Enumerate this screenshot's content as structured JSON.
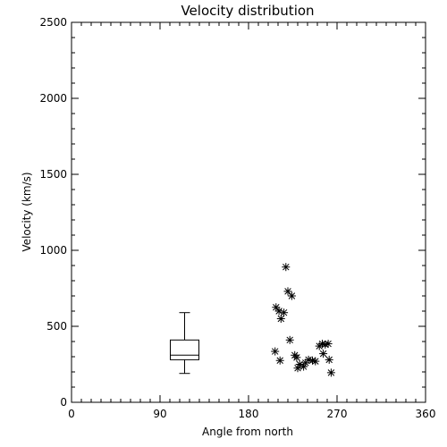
{
  "chart_data": {
    "type": "scatter",
    "title": "Velocity distribution",
    "xlabel": "Angle from north",
    "ylabel": "Velocity (km/s)",
    "xlim": [
      0,
      360
    ],
    "ylim": [
      0,
      2500
    ],
    "x_ticks": [
      0,
      90,
      180,
      270,
      360
    ],
    "y_ticks": [
      0,
      500,
      1000,
      1500,
      2000,
      2500
    ],
    "grid": false,
    "marker": "asterisk",
    "color": "#000000",
    "boxplot": {
      "x": 115,
      "min": 190,
      "q1": 280,
      "median": 310,
      "q3": 410,
      "max": 590
    },
    "points": [
      {
        "x": 218,
        "y": 890
      },
      {
        "x": 220,
        "y": 730
      },
      {
        "x": 224,
        "y": 700
      },
      {
        "x": 208,
        "y": 625
      },
      {
        "x": 211,
        "y": 600
      },
      {
        "x": 216,
        "y": 590
      },
      {
        "x": 213,
        "y": 550
      },
      {
        "x": 222,
        "y": 410
      },
      {
        "x": 207,
        "y": 335
      },
      {
        "x": 227,
        "y": 310
      },
      {
        "x": 229,
        "y": 295
      },
      {
        "x": 212,
        "y": 275
      },
      {
        "x": 232,
        "y": 250
      },
      {
        "x": 230,
        "y": 225
      },
      {
        "x": 236,
        "y": 235
      },
      {
        "x": 238,
        "y": 260
      },
      {
        "x": 241,
        "y": 280
      },
      {
        "x": 245,
        "y": 275
      },
      {
        "x": 248,
        "y": 270
      },
      {
        "x": 252,
        "y": 370
      },
      {
        "x": 255,
        "y": 385
      },
      {
        "x": 258,
        "y": 380
      },
      {
        "x": 261,
        "y": 385
      },
      {
        "x": 256,
        "y": 320
      },
      {
        "x": 262,
        "y": 280
      },
      {
        "x": 264,
        "y": 195
      }
    ]
  }
}
